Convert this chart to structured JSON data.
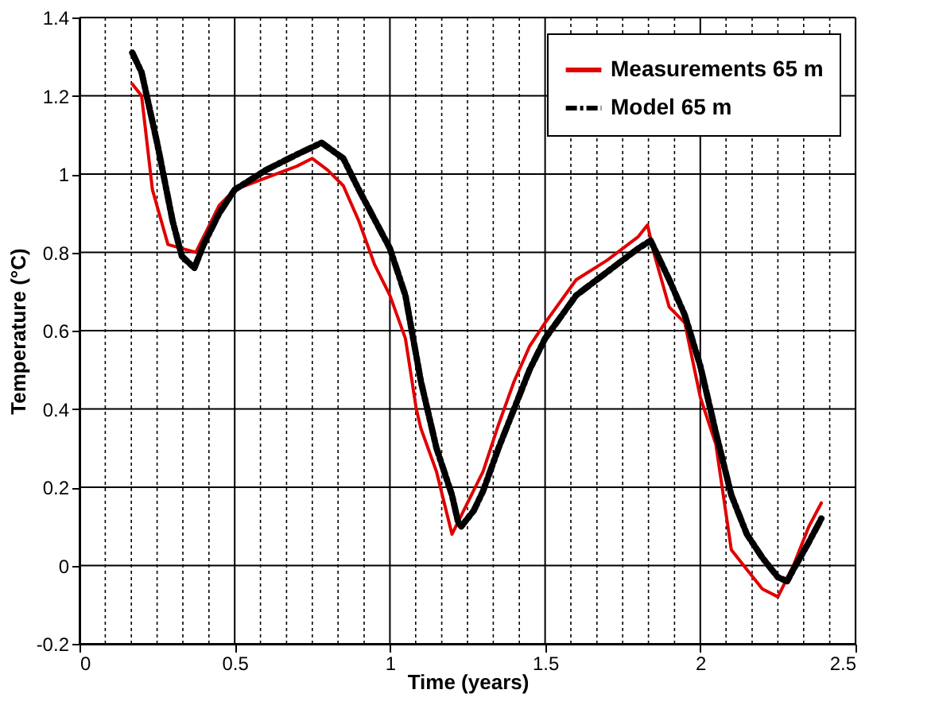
{
  "chart_data": {
    "type": "line",
    "xlabel": "Time (years)",
    "ylabel": "Temperature (°C)",
    "xlim": [
      0,
      2.5
    ],
    "ylim": [
      -0.2,
      1.4
    ],
    "xticks": [
      0,
      {
        "value": 0.083,
        "label": null
      },
      {
        "value": 0.167,
        "label": null
      },
      {
        "value": 0.25,
        "label": null
      },
      {
        "value": 0.333,
        "label": null
      },
      {
        "value": 0.417,
        "label": null
      },
      0.5,
      {
        "value": 0.583,
        "label": null
      },
      {
        "value": 0.667,
        "label": null
      },
      {
        "value": 0.75,
        "label": null
      },
      {
        "value": 0.833,
        "label": null
      },
      {
        "value": 0.917,
        "label": null
      },
      1,
      {
        "value": 1.083,
        "label": null
      },
      {
        "value": 1.167,
        "label": null
      },
      {
        "value": 1.25,
        "label": null
      },
      {
        "value": 1.333,
        "label": null
      },
      {
        "value": 1.417,
        "label": null
      },
      1.5,
      {
        "value": 1.583,
        "label": null
      },
      {
        "value": 1.667,
        "label": null
      },
      {
        "value": 1.75,
        "label": null
      },
      {
        "value": 1.833,
        "label": null
      },
      {
        "value": 1.917,
        "label": null
      },
      2,
      {
        "value": 2.083,
        "label": null
      },
      {
        "value": 2.167,
        "label": null
      },
      {
        "value": 2.25,
        "label": null
      },
      {
        "value": 2.333,
        "label": null
      },
      {
        "value": 2.417,
        "label": null
      },
      2.5
    ],
    "yticks": [
      -0.2,
      0,
      0.2,
      0.4,
      0.6,
      0.8,
      1,
      1.2,
      1.4
    ],
    "grid": true,
    "legend": "top right",
    "series": [
      {
        "name": "Measurements 65 m",
        "color": "#e00000",
        "line_style": "solid",
        "x": [
          0.17,
          0.2,
          0.235,
          0.285,
          0.33,
          0.375,
          0.45,
          0.5,
          0.6,
          0.7,
          0.75,
          0.8,
          0.85,
          0.9,
          0.95,
          1.0,
          1.05,
          1.085,
          1.1,
          1.15,
          1.2,
          1.25,
          1.3,
          1.35,
          1.4,
          1.45,
          1.5,
          1.6,
          1.7,
          1.8,
          1.83,
          1.85,
          1.9,
          1.95,
          2.0,
          2.05,
          2.1,
          2.15,
          2.2,
          2.25,
          2.3,
          2.35,
          2.39
        ],
        "values": [
          1.23,
          1.2,
          0.96,
          0.82,
          0.81,
          0.8,
          0.92,
          0.96,
          0.99,
          1.02,
          1.04,
          1.01,
          0.97,
          0.88,
          0.77,
          0.69,
          0.58,
          0.4,
          0.35,
          0.24,
          0.08,
          0.16,
          0.24,
          0.36,
          0.47,
          0.56,
          0.62,
          0.73,
          0.78,
          0.84,
          0.87,
          0.8,
          0.66,
          0.62,
          0.43,
          0.31,
          0.04,
          -0.01,
          -0.06,
          -0.08,
          0.0,
          0.1,
          0.16
        ]
      },
      {
        "name": "Model 65 m",
        "color": "#000000",
        "line_style": "dashed",
        "x": [
          0.17,
          0.2,
          0.25,
          0.3,
          0.33,
          0.37,
          0.4,
          0.45,
          0.5,
          0.6,
          0.7,
          0.78,
          0.85,
          0.9,
          1.0,
          1.05,
          1.1,
          1.15,
          1.2,
          1.22,
          1.23,
          1.27,
          1.3,
          1.35,
          1.4,
          1.45,
          1.5,
          1.6,
          1.7,
          1.8,
          1.84,
          1.9,
          1.95,
          2.0,
          2.05,
          2.1,
          2.15,
          2.2,
          2.25,
          2.28,
          2.3,
          2.35,
          2.39
        ],
        "values": [
          1.31,
          1.26,
          1.08,
          0.88,
          0.79,
          0.76,
          0.82,
          0.9,
          0.96,
          1.01,
          1.05,
          1.08,
          1.04,
          0.96,
          0.81,
          0.69,
          0.47,
          0.3,
          0.18,
          0.11,
          0.1,
          0.14,
          0.19,
          0.3,
          0.4,
          0.5,
          0.58,
          0.69,
          0.75,
          0.81,
          0.83,
          0.73,
          0.64,
          0.51,
          0.34,
          0.18,
          0.08,
          0.02,
          -0.03,
          -0.04,
          -0.01,
          0.06,
          0.12
        ]
      }
    ]
  }
}
